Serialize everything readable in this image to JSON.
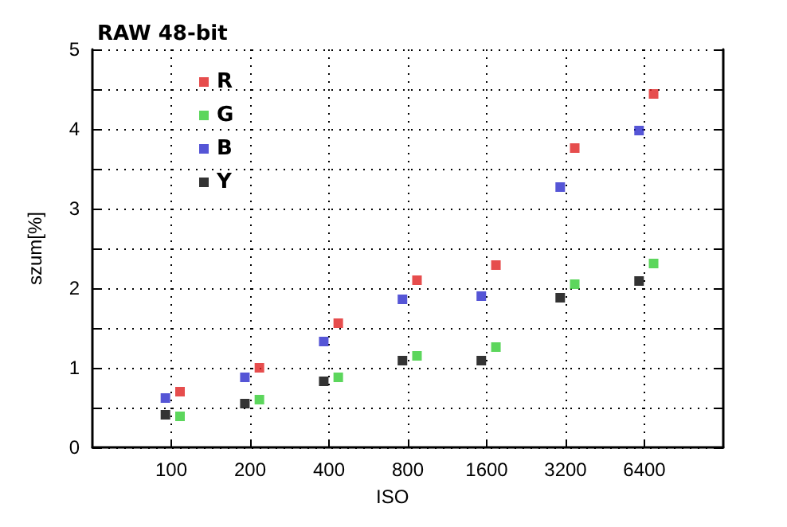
{
  "chart_data": {
    "type": "scatter",
    "title": "RAW 48-bit",
    "xlabel": "ISO",
    "ylabel": "szum[%]",
    "series": [
      {
        "name": "R",
        "color": "#e02020",
        "x": [
          108,
          217,
          434,
          867,
          1735,
          3469,
          6938
        ],
        "values": [
          0.7,
          1.0,
          1.56,
          2.1,
          2.29,
          3.76,
          4.44
        ]
      },
      {
        "name": "G",
        "color": "#33cc33",
        "x": [
          108,
          217,
          434,
          867,
          1735,
          3469,
          6938
        ],
        "values": [
          0.39,
          0.6,
          0.88,
          1.15,
          1.26,
          2.05,
          2.31
        ]
      },
      {
        "name": "B",
        "color": "#2a2acc",
        "x": [
          95,
          191,
          382,
          763,
          1526,
          3053,
          6106
        ],
        "values": [
          0.62,
          0.88,
          1.33,
          1.86,
          1.9,
          3.27,
          3.98
        ]
      },
      {
        "name": "Y",
        "color": "#000000",
        "x": [
          95,
          191,
          382,
          763,
          1526,
          3053,
          6106
        ],
        "values": [
          0.41,
          0.55,
          0.83,
          1.09,
          1.09,
          1.88,
          2.09
        ]
      }
    ],
    "log": "x",
    "xlim": [
      50,
      12800
    ],
    "xticks": [
      100,
      200,
      400,
      800,
      1600,
      3200,
      6400
    ],
    "ylim": [
      0,
      5
    ],
    "yticks": [
      0,
      {
        "value": 0.5,
        "label": null
      },
      1,
      {
        "value": 1.5,
        "label": null
      },
      2,
      {
        "value": 2.5,
        "label": null
      },
      3,
      {
        "value": 3.5,
        "label": null
      },
      4,
      {
        "value": 4.5,
        "label": null
      },
      5
    ],
    "grid": true,
    "legend": "top left",
    "marker": "square"
  }
}
